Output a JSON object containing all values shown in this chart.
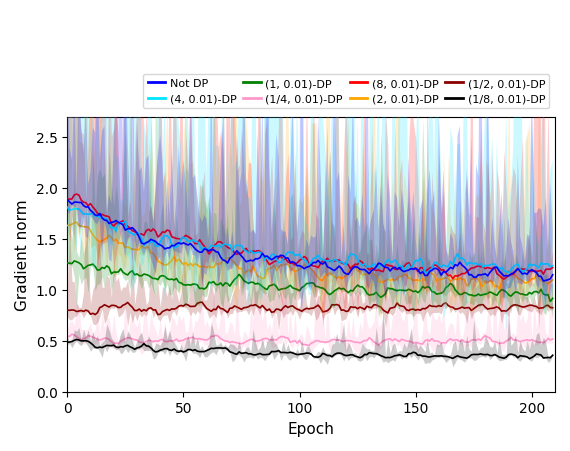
{
  "title": "",
  "xlabel": "Epoch",
  "ylabel": "Gradient norm",
  "xlim": [
    0,
    210
  ],
  "ylim": [
    0.0,
    2.7
  ],
  "yticks": [
    0.0,
    0.5,
    1.0,
    1.5,
    2.0,
    2.5
  ],
  "xticks": [
    0,
    50,
    100,
    150,
    200
  ],
  "n_epochs": 210,
  "series": [
    {
      "label": "Not DP",
      "color": "#0000ff",
      "mean_start": 1.88,
      "mean_end": 1.15,
      "std_start": 0.4,
      "std_end": 0.25,
      "noise_mean": 0.06,
      "noise_std": 0.3,
      "spike_freq": 0.12,
      "spike_height": 0.8,
      "zorder": 6
    },
    {
      "label": "(8, 0.01)-DP",
      "color": "#ff0000",
      "mean_start": 1.92,
      "mean_end": 1.18,
      "std_start": 0.45,
      "std_end": 0.35,
      "noise_mean": 0.08,
      "noise_std": 0.35,
      "spike_freq": 0.15,
      "spike_height": 1.0,
      "zorder": 5
    },
    {
      "label": "(4, 0.01)-DP",
      "color": "#00e5ff",
      "mean_start": 1.82,
      "mean_end": 1.22,
      "std_start": 0.55,
      "std_end": 0.45,
      "noise_mean": 0.08,
      "noise_std": 0.4,
      "spike_freq": 0.18,
      "spike_height": 1.2,
      "zorder": 5
    },
    {
      "label": "(2, 0.01)-DP",
      "color": "#ffa500",
      "mean_start": 1.65,
      "mean_end": 1.08,
      "std_start": 0.38,
      "std_end": 0.28,
      "noise_mean": 0.07,
      "noise_std": 0.32,
      "spike_freq": 0.14,
      "spike_height": 0.9,
      "zorder": 4
    },
    {
      "label": "(1, 0.01)-DP",
      "color": "#008000",
      "mean_start": 1.28,
      "mean_end": 0.97,
      "std_start": 0.28,
      "std_end": 0.18,
      "noise_mean": 0.06,
      "noise_std": 0.22,
      "spike_freq": 0.12,
      "spike_height": 0.6,
      "zorder": 4
    },
    {
      "label": "(1/2, 0.01)-DP",
      "color": "#8b0000",
      "mean_start": 0.8,
      "mean_end": 0.82,
      "std_start": 0.14,
      "std_end": 0.12,
      "noise_mean": 0.05,
      "noise_std": 0.12,
      "spike_freq": 0.1,
      "spike_height": 0.4,
      "zorder": 3
    },
    {
      "label": "(1/4, 0.01)-DP",
      "color": "#ff99cc",
      "mean_start": 0.52,
      "mean_end": 0.5,
      "std_start": 0.12,
      "std_end": 0.12,
      "noise_mean": 0.04,
      "noise_std": 0.1,
      "spike_freq": 0.08,
      "spike_height": 0.3,
      "zorder": 2
    },
    {
      "label": "(1/8, 0.01)-DP",
      "color": "#000000",
      "mean_start": 0.5,
      "mean_end": 0.35,
      "std_start": 0.09,
      "std_end": 0.07,
      "noise_mean": 0.03,
      "noise_std": 0.07,
      "spike_freq": 0.05,
      "spike_height": 0.15,
      "zorder": 7
    }
  ],
  "legend_order": [
    0,
    2,
    4,
    6,
    1,
    3,
    5,
    7
  ],
  "figsize": [
    5.7,
    4.52
  ],
  "dpi": 100
}
